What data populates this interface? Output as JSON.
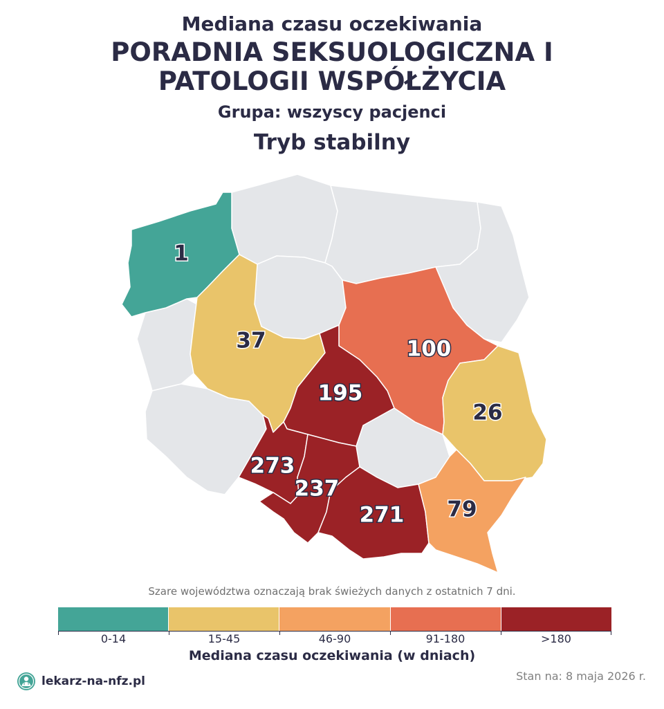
{
  "title": {
    "top": "Mediana czasu oczekiwania",
    "main_line1": "PORADNIA SEKSUOLOGICZNA I",
    "main_line2": "PATOLOGII WSPÓŁŻYCIA",
    "group": "Grupa: wszyscy pacjenci",
    "mode": "Tryb stabilny"
  },
  "map": {
    "no_data_color": "#e4e6e9",
    "regions": [
      {
        "name": "zachodniopomorskie",
        "value": "1",
        "color": "#44a597"
      },
      {
        "name": "pomorskie",
        "value": null,
        "color": "#e4e6e9"
      },
      {
        "name": "warmińsko-mazurskie",
        "value": null,
        "color": "#e4e6e9"
      },
      {
        "name": "podlaskie",
        "value": null,
        "color": "#e4e6e9"
      },
      {
        "name": "lubuskie",
        "value": null,
        "color": "#e4e6e9"
      },
      {
        "name": "wielkopolskie",
        "value": "37",
        "color": "#e9c46a"
      },
      {
        "name": "kujawsko-pomorskie",
        "value": null,
        "color": "#e4e6e9"
      },
      {
        "name": "mazowieckie",
        "value": "100",
        "color": "#e76f51"
      },
      {
        "name": "łódzkie",
        "value": "195",
        "color": "#9b2226"
      },
      {
        "name": "lubelskie",
        "value": "26",
        "color": "#e9c46a"
      },
      {
        "name": "dolnośląskie",
        "value": null,
        "color": "#e4e6e9"
      },
      {
        "name": "opolskie",
        "value": "273",
        "color": "#9b2226"
      },
      {
        "name": "śląskie",
        "value": "237",
        "color": "#9b2226"
      },
      {
        "name": "świętokrzyskie",
        "value": null,
        "color": "#e4e6e9"
      },
      {
        "name": "małopolskie",
        "value": "271",
        "color": "#9b2226"
      },
      {
        "name": "podkarpackie",
        "value": "79",
        "color": "#f4a261"
      }
    ]
  },
  "note": "Szare województwa oznaczają brak świeżych danych z ostatnich 7 dni.",
  "legend": {
    "title": "Mediana czasu oczekiwania (w dniach)",
    "bins": [
      {
        "label": "0-14",
        "color": "#44a597"
      },
      {
        "label": "15-45",
        "color": "#e9c46a"
      },
      {
        "label": "46-90",
        "color": "#f4a261"
      },
      {
        "label": "91-180",
        "color": "#e76f51"
      },
      {
        "label": ">180",
        "color": "#9b2226"
      }
    ]
  },
  "footer": {
    "brand": "lekarz-na-nfz.pl",
    "stamp": "Stan na: 8 maja 2026 r."
  }
}
